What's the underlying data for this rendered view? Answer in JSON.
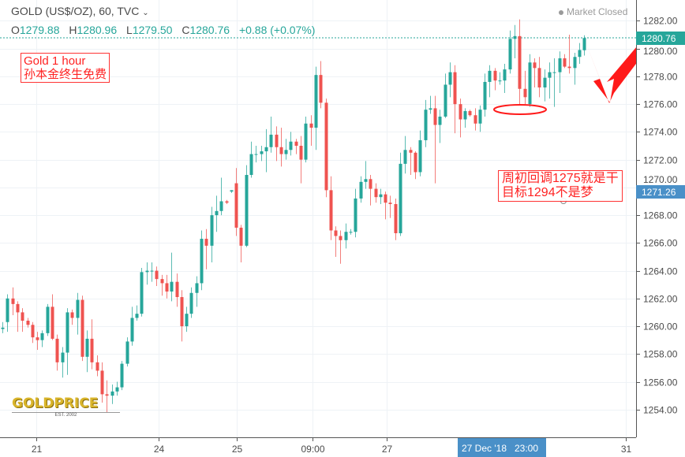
{
  "header": {
    "title": "GOLD (US$/OZ), 60, TVC",
    "dropdown_icon": "chevron-down-icon",
    "ohlc": {
      "o_label": "O",
      "o": "1279.88",
      "h_label": "H",
      "h": "1280.96",
      "l_label": "L",
      "l": "1279.50",
      "c_label": "C",
      "c": "1280.76",
      "change": "+0.88 (+0.07%)"
    },
    "market_status": "Market Closed"
  },
  "annotations": {
    "note1_line1": "Gold 1 hour",
    "note1_line2": "孙本金终生免费",
    "note2_line1": "周初回调1275就是干",
    "note2_line2": "目标1294不是梦",
    "arrow_color": "#ff1a1a"
  },
  "watermark": {
    "brand": "GOLDPRICE",
    "tagline": "EST. 2002"
  },
  "price_labels": {
    "last": "1280.76",
    "crosshair": "1271.26",
    "last_color": "#26a69a",
    "crosshair_color": "#4a90c8"
  },
  "time_label": "27 Dec '18   23:00",
  "colors": {
    "up": "#26a69a",
    "down": "#ef5350",
    "grid": "#eef2f6"
  },
  "chart_data": {
    "type": "candlestick",
    "symbol": "GOLD (US$/OZ)",
    "interval": "60",
    "ylim": [
      1252,
      1283.5
    ],
    "grid": true,
    "yticks": [
      "1282.00",
      "1280.00",
      "1278.00",
      "1276.00",
      "1274.00",
      "1272.00",
      "1270.00",
      "1268.00",
      "1266.00",
      "1264.00",
      "1262.00",
      "1260.00",
      "1258.00",
      "1256.00",
      "1254.00"
    ],
    "xticks": [
      {
        "label": "21",
        "bar": 6.8
      },
      {
        "label": "24",
        "bar": 31.4
      },
      {
        "label": "25",
        "bar": 47.1
      },
      {
        "label": "09:00",
        "bar": 62.4
      },
      {
        "label": "27",
        "bar": 77.3
      },
      {
        "label": "31",
        "bar": 125.4
      }
    ],
    "ohlc": [
      [
        1259.8,
        1260.3,
        1259.5,
        1259.9
      ],
      [
        1260.3,
        1262.3,
        1259.6,
        1262.0
      ],
      [
        1262.0,
        1262.8,
        1260.8,
        1261.6
      ],
      [
        1261.6,
        1261.8,
        1259.6,
        1261.0
      ],
      [
        1261.0,
        1261.3,
        1259.6,
        1260.4
      ],
      [
        1260.4,
        1260.6,
        1259.9,
        1260.1
      ],
      [
        1260.1,
        1260.3,
        1258.8,
        1259.2
      ],
      [
        1259.2,
        1259.6,
        1258.3,
        1259.0
      ],
      [
        1259.0,
        1259.7,
        1258.5,
        1259.5
      ],
      [
        1259.5,
        1261.6,
        1259.3,
        1261.4
      ],
      [
        1261.4,
        1262.3,
        1259.0,
        1259.1
      ],
      [
        1259.1,
        1259.4,
        1256.8,
        1257.4
      ],
      [
        1257.4,
        1258.5,
        1256.3,
        1258.1
      ],
      [
        1258.1,
        1261.3,
        1256.5,
        1261.0
      ],
      [
        1261.0,
        1261.2,
        1260.1,
        1260.6
      ],
      [
        1260.6,
        1262.4,
        1259.4,
        1261.9
      ],
      [
        1261.9,
        1262.2,
        1257.5,
        1257.8
      ],
      [
        1257.8,
        1259.7,
        1256.7,
        1259.1
      ],
      [
        1259.1,
        1260.5,
        1256.9,
        1257.4
      ],
      [
        1257.4,
        1257.9,
        1256.4,
        1256.8
      ],
      [
        1256.8,
        1257.4,
        1254.5,
        1255.1
      ],
      [
        1255.1,
        1256.1,
        1253.8,
        1255.0
      ],
      [
        1255.0,
        1255.8,
        1254.4,
        1255.3
      ],
      [
        1255.3,
        1256.0,
        1255.0,
        1255.6
      ],
      [
        1255.6,
        1257.5,
        1255.4,
        1257.3
      ],
      [
        1257.3,
        1259.2,
        1257.1,
        1258.9
      ],
      [
        1258.9,
        1261.4,
        1258.6,
        1260.6
      ],
      [
        1260.6,
        1261.5,
        1260.4,
        1260.9
      ],
      [
        1260.9,
        1264.2,
        1260.7,
        1263.9
      ],
      [
        1263.9,
        1264.6,
        1263.0,
        1264.0
      ],
      [
        1264.0,
        1264.6,
        1263.2,
        1264.0
      ],
      [
        1264.0,
        1264.3,
        1262.9,
        1263.4
      ],
      [
        1263.4,
        1263.7,
        1262.2,
        1263.1
      ],
      [
        1263.1,
        1263.7,
        1262.0,
        1262.5
      ],
      [
        1262.5,
        1265.3,
        1261.8,
        1263.2
      ],
      [
        1263.2,
        1263.8,
        1261.4,
        1262.1
      ],
      [
        1262.1,
        1262.6,
        1258.9,
        1260.0
      ],
      [
        1260.0,
        1261.4,
        1259.6,
        1260.9
      ],
      [
        1260.9,
        1262.8,
        1260.6,
        1262.4
      ],
      [
        1262.4,
        1263.6,
        1261.4,
        1263.1
      ],
      [
        1263.1,
        1266.9,
        1262.6,
        1266.3
      ],
      [
        1266.3,
        1267.0,
        1264.1,
        1265.8
      ],
      [
        1265.8,
        1268.6,
        1264.6,
        1268.0
      ],
      [
        1268.0,
        1269.4,
        1266.8,
        1268.3
      ],
      [
        1268.3,
        1270.7,
        1268.0,
        1269.0
      ],
      [
        1269.0,
        1269.1,
        1268.8,
        1268.9
      ],
      [
        1269.7,
        1269.8,
        1269.6,
        1269.8
      ],
      [
        1270.3,
        1271.4,
        1266.5,
        1267.1
      ],
      [
        1267.1,
        1267.3,
        1264.6,
        1265.8
      ],
      [
        1265.8,
        1271.6,
        1265.7,
        1270.9
      ],
      [
        1270.9,
        1273.3,
        1270.7,
        1272.4
      ],
      [
        1272.4,
        1273.0,
        1271.8,
        1272.4
      ],
      [
        1272.4,
        1273.0,
        1271.9,
        1272.6
      ],
      [
        1272.6,
        1274.2,
        1271.1,
        1272.9
      ],
      [
        1272.9,
        1275.1,
        1272.5,
        1273.8
      ],
      [
        1273.8,
        1274.4,
        1271.9,
        1272.9
      ],
      [
        1272.9,
        1274.3,
        1271.5,
        1272.4
      ],
      [
        1272.4,
        1273.5,
        1272.0,
        1272.7
      ],
      [
        1272.7,
        1274.0,
        1272.3,
        1273.3
      ],
      [
        1273.3,
        1273.5,
        1272.4,
        1273.0
      ],
      [
        1273.0,
        1273.7,
        1270.3,
        1272.0
      ],
      [
        1272.0,
        1275.1,
        1271.8,
        1274.6
      ],
      [
        1274.6,
        1275.2,
        1273.0,
        1274.3
      ],
      [
        1274.3,
        1278.7,
        1272.7,
        1278.1
      ],
      [
        1278.1,
        1279.1,
        1275.7,
        1276.1
      ],
      [
        1276.1,
        1276.4,
        1269.3,
        1269.8
      ],
      [
        1269.8,
        1270.8,
        1266.2,
        1266.9
      ],
      [
        1266.9,
        1267.2,
        1265.0,
        1266.5
      ],
      [
        1266.5,
        1266.9,
        1264.5,
        1266.2
      ],
      [
        1266.2,
        1267.4,
        1265.6,
        1266.8
      ],
      [
        1266.8,
        1267.0,
        1266.6,
        1266.8
      ],
      [
        1266.8,
        1269.9,
        1266.4,
        1269.2
      ],
      [
        1269.2,
        1270.8,
        1268.9,
        1270.4
      ],
      [
        1270.4,
        1271.9,
        1269.9,
        1270.6
      ],
      [
        1270.6,
        1270.9,
        1268.7,
        1269.9
      ],
      [
        1269.9,
        1270.3,
        1268.9,
        1269.3
      ],
      [
        1269.3,
        1269.9,
        1268.8,
        1269.5
      ],
      [
        1269.5,
        1269.7,
        1267.7,
        1268.9
      ],
      [
        1268.9,
        1269.4,
        1267.8,
        1268.8
      ],
      [
        1268.8,
        1269.2,
        1266.2,
        1266.7
      ],
      [
        1266.7,
        1272.5,
        1266.5,
        1271.7
      ],
      [
        1271.7,
        1273.7,
        1271.0,
        1272.7
      ],
      [
        1272.7,
        1272.9,
        1270.9,
        1272.5
      ],
      [
        1272.5,
        1272.6,
        1270.6,
        1271.1
      ],
      [
        1271.1,
        1274.1,
        1270.8,
        1273.4
      ],
      [
        1273.4,
        1276.3,
        1272.9,
        1275.6
      ],
      [
        1275.6,
        1276.6,
        1275.3,
        1275.7
      ],
      [
        1275.7,
        1276.6,
        1270.3,
        1274.5
      ],
      [
        1274.5,
        1275.6,
        1273.2,
        1275.1
      ],
      [
        1275.1,
        1278.2,
        1275.0,
        1277.4
      ],
      [
        1277.4,
        1279.0,
        1276.5,
        1278.3
      ],
      [
        1278.3,
        1278.8,
        1273.9,
        1276.0
      ],
      [
        1276.0,
        1276.4,
        1273.6,
        1274.9
      ],
      [
        1274.9,
        1275.7,
        1274.3,
        1275.5
      ],
      [
        1275.5,
        1275.6,
        1275.1,
        1275.2
      ],
      [
        1275.2,
        1275.7,
        1274.1,
        1274.6
      ],
      [
        1274.6,
        1275.9,
        1274.0,
        1275.6
      ],
      [
        1275.6,
        1278.2,
        1275.1,
        1277.6
      ],
      [
        1277.6,
        1278.8,
        1276.5,
        1278.4
      ],
      [
        1278.4,
        1278.6,
        1277.0,
        1277.7
      ],
      [
        1277.7,
        1278.3,
        1277.4,
        1277.7
      ],
      [
        1277.7,
        1278.9,
        1276.8,
        1278.5
      ],
      [
        1278.5,
        1281.3,
        1278.2,
        1280.7
      ],
      [
        1280.7,
        1281.7,
        1279.3,
        1280.9
      ],
      [
        1280.9,
        1282.1,
        1276.0,
        1277.1
      ],
      [
        1277.1,
        1278.4,
        1276.0,
        1276.5
      ],
      [
        1276.0,
        1279.6,
        1275.8,
        1279.0
      ],
      [
        1279.0,
        1279.3,
        1277.2,
        1278.6
      ],
      [
        1278.6,
        1279.4,
        1276.5,
        1277.2
      ],
      [
        1277.2,
        1278.5,
        1276.2,
        1277.9
      ],
      [
        1277.9,
        1279.0,
        1276.4,
        1278.3
      ],
      [
        1278.3,
        1279.3,
        1275.8,
        1278.3
      ],
      [
        1278.3,
        1279.8,
        1276.8,
        1279.3
      ],
      [
        1279.3,
        1279.6,
        1278.6,
        1278.7
      ],
      [
        1278.7,
        1281.0,
        1278.2,
        1278.6
      ],
      [
        1278.6,
        1279.7,
        1277.4,
        1279.4
      ],
      [
        1279.4,
        1280.4,
        1278.9,
        1279.9
      ],
      [
        1279.88,
        1280.96,
        1279.5,
        1280.76
      ]
    ]
  }
}
